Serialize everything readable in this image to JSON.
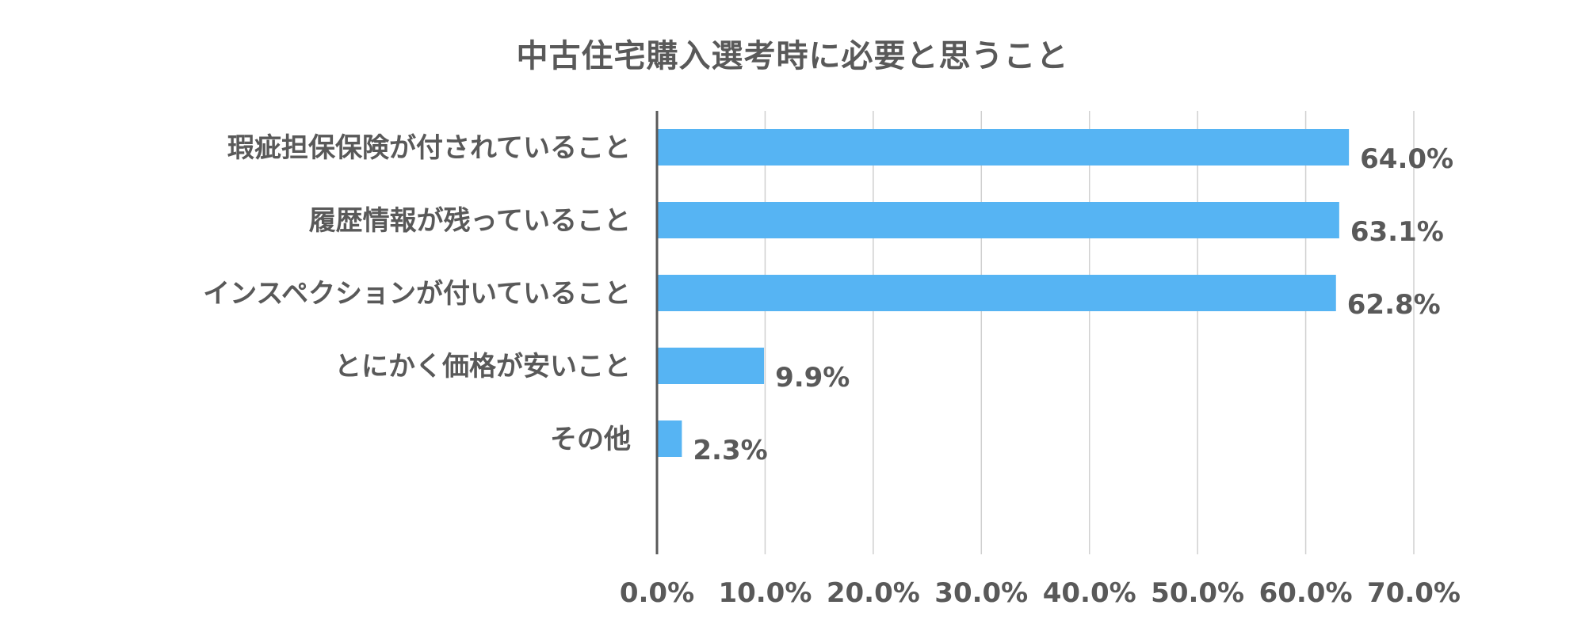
{
  "chart_data": {
    "type": "bar",
    "orientation": "horizontal",
    "title": "中古住宅購入選考時に必要と思うこと",
    "categories": [
      "瑕疵担保保険が付されていること",
      "履歴情報が残っていること",
      "インスペクションが付いていること",
      "とにかく価格が安いこと",
      "その他"
    ],
    "values": [
      64.0,
      63.1,
      62.8,
      9.9,
      2.3
    ],
    "value_labels": [
      "64.0%",
      "63.1%",
      "62.8%",
      "9.9%",
      "2.3%"
    ],
    "x_ticks": [
      0,
      10,
      20,
      30,
      40,
      50,
      60,
      70
    ],
    "x_tick_labels": [
      "0.0%",
      "10.0%",
      "20.0%",
      "30.0%",
      "40.0%",
      "50.0%",
      "60.0%",
      "70.0%"
    ],
    "xlim": [
      0,
      70
    ],
    "xlabel": "",
    "ylabel": "",
    "grid": "vertical",
    "legend": "none",
    "bar_color": "#56b4f3",
    "text_color": "#595959",
    "grid_color": "#d0d0d0",
    "axis_color": "#595959"
  }
}
